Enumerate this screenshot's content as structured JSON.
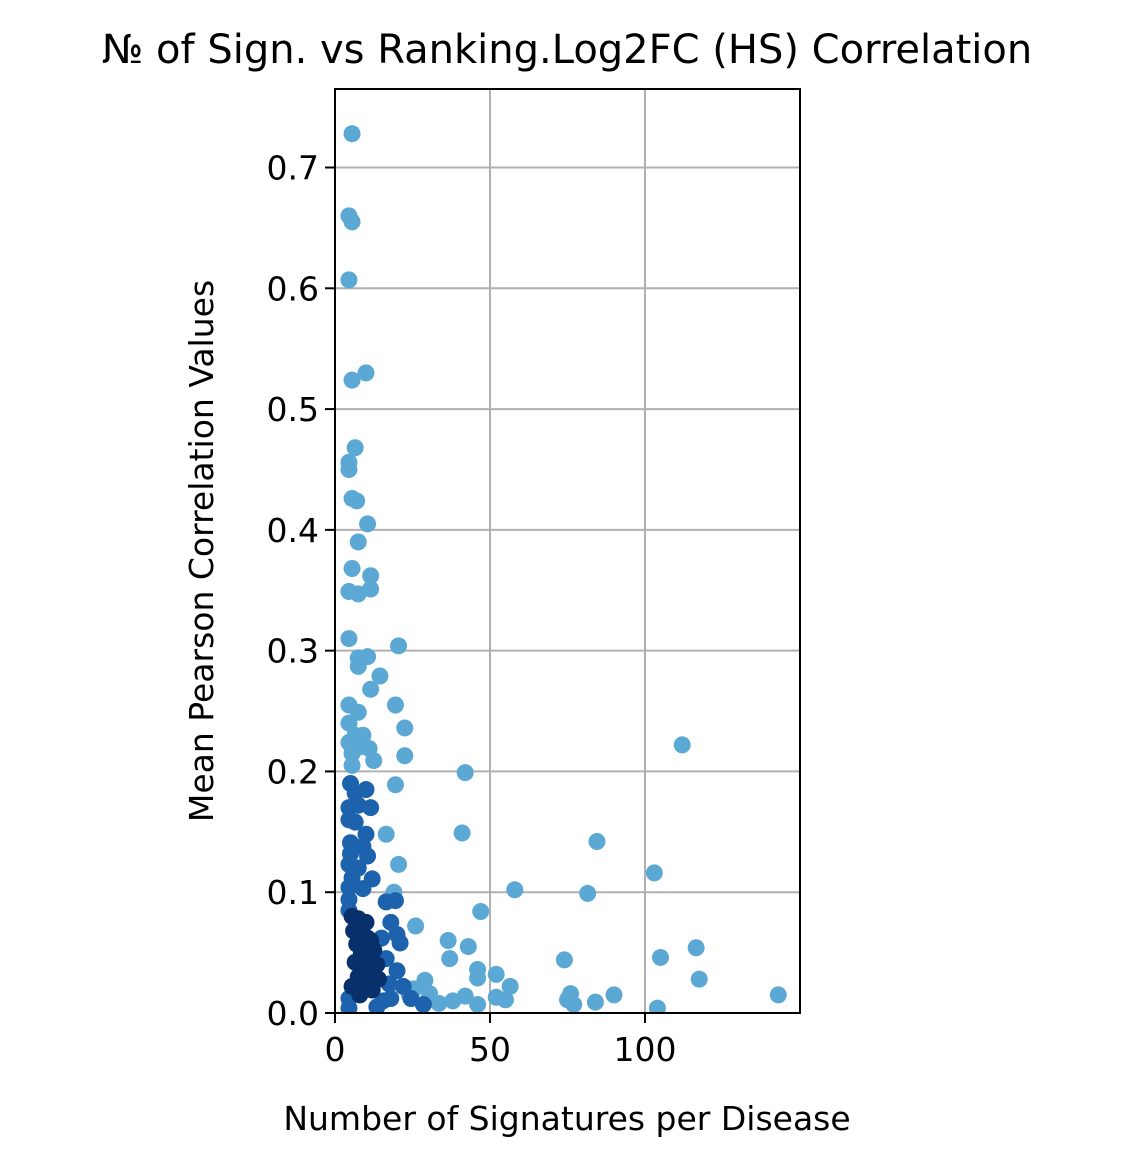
{
  "chart_data": {
    "type": "scatter",
    "title": "№ of Sign. vs Ranking.Log2FC (HS) Correlation",
    "xlabel": "Number of Signatures per Disease",
    "ylabel": "Mean Pearson Correlation Values",
    "xlim": [
      0,
      150
    ],
    "ylim": [
      0,
      0.765
    ],
    "xticks": [
      0,
      50,
      100
    ],
    "xtick_labels": [
      "0",
      "50",
      "100"
    ],
    "yticks": [
      0.0,
      0.1,
      0.2,
      0.3,
      0.4,
      0.5,
      0.6,
      0.7
    ],
    "ytick_labels": [
      "0.0",
      "0.1",
      "0.2",
      "0.3",
      "0.4",
      "0.5",
      "0.6",
      "0.7"
    ],
    "grid": true,
    "legend": false,
    "colors": {
      "light": "#5ca8d4",
      "medium": "#1c62ad",
      "dark": "#08306b",
      "grid": "#b0b0b0"
    },
    "series": [
      {
        "points": [
          [
            5.5,
            0.728
          ],
          [
            4.5,
            0.66
          ],
          [
            5.5,
            0.655
          ],
          [
            4.5,
            0.607
          ],
          [
            10.0,
            0.53
          ],
          [
            5.5,
            0.524
          ],
          [
            6.5,
            0.468
          ],
          [
            4.5,
            0.456
          ],
          [
            4.5,
            0.45
          ],
          [
            5.5,
            0.426
          ],
          [
            7.0,
            0.424
          ],
          [
            10.5,
            0.405
          ],
          [
            7.5,
            0.39
          ],
          [
            5.5,
            0.368
          ],
          [
            11.5,
            0.362
          ],
          [
            4.5,
            0.349
          ],
          [
            7.5,
            0.347
          ],
          [
            11.5,
            0.351
          ],
          [
            4.5,
            0.31
          ],
          [
            20.5,
            0.304
          ],
          [
            7.5,
            0.294
          ],
          [
            10.5,
            0.295
          ],
          [
            7.5,
            0.287
          ],
          [
            14.5,
            0.279
          ],
          [
            11.5,
            0.268
          ],
          [
            4.5,
            0.255
          ],
          [
            19.5,
            0.255
          ],
          [
            7.5,
            0.249
          ],
          [
            4.5,
            0.24
          ],
          [
            22.5,
            0.236
          ],
          [
            6.5,
            0.23
          ],
          [
            9.0,
            0.23
          ],
          [
            4.5,
            0.224
          ],
          [
            7.5,
            0.22
          ],
          [
            11.0,
            0.219
          ],
          [
            5.5,
            0.215
          ],
          [
            22.5,
            0.213
          ],
          [
            12.5,
            0.209
          ],
          [
            5.5,
            0.205
          ],
          [
            112.0,
            0.222
          ],
          [
            42.0,
            0.199
          ],
          [
            19.5,
            0.189
          ],
          [
            84.5,
            0.142
          ],
          [
            41.0,
            0.149
          ],
          [
            103.0,
            0.116
          ],
          [
            58.0,
            0.102
          ],
          [
            81.5,
            0.099
          ],
          [
            47.0,
            0.084
          ],
          [
            116.5,
            0.054
          ],
          [
            105.0,
            0.046
          ],
          [
            74.0,
            0.044
          ],
          [
            36.5,
            0.06
          ],
          [
            43.0,
            0.055
          ],
          [
            37.0,
            0.045
          ],
          [
            52.0,
            0.032
          ],
          [
            56.5,
            0.022
          ],
          [
            46.0,
            0.036
          ],
          [
            46.0,
            0.029
          ],
          [
            117.5,
            0.028
          ],
          [
            76.0,
            0.016
          ],
          [
            90.0,
            0.015
          ],
          [
            143.0,
            0.015
          ],
          [
            84.0,
            0.009
          ],
          [
            75.0,
            0.011
          ],
          [
            104.0,
            0.004
          ],
          [
            52.0,
            0.013
          ],
          [
            55.0,
            0.011
          ],
          [
            38.0,
            0.01
          ],
          [
            42.0,
            0.014
          ],
          [
            46.0,
            0.007
          ],
          [
            77.0,
            0.007
          ],
          [
            24.0,
            0.015
          ],
          [
            16.5,
            0.148
          ],
          [
            20.5,
            0.123
          ],
          [
            19.0,
            0.1
          ],
          [
            26.0,
            0.072
          ],
          [
            29.0,
            0.027
          ],
          [
            25.5,
            0.02
          ],
          [
            30.5,
            0.016
          ],
          [
            33.5,
            0.008
          ]
        ],
        "color": "#5ca8d4"
      },
      {
        "points": [
          [
            5.0,
            0.19
          ],
          [
            6.5,
            0.182
          ],
          [
            10.0,
            0.185
          ],
          [
            4.5,
            0.17
          ],
          [
            7.5,
            0.172
          ],
          [
            11.5,
            0.17
          ],
          [
            4.5,
            0.16
          ],
          [
            6.5,
            0.158
          ],
          [
            10.0,
            0.148
          ],
          [
            5.0,
            0.141
          ],
          [
            9.0,
            0.138
          ],
          [
            5.0,
            0.132
          ],
          [
            10.5,
            0.13
          ],
          [
            4.5,
            0.123
          ],
          [
            7.5,
            0.12
          ],
          [
            5.5,
            0.112
          ],
          [
            12.0,
            0.111
          ],
          [
            4.5,
            0.104
          ],
          [
            9.0,
            0.103
          ],
          [
            4.5,
            0.094
          ],
          [
            16.5,
            0.092
          ],
          [
            19.5,
            0.093
          ],
          [
            4.5,
            0.085
          ],
          [
            18.0,
            0.075
          ],
          [
            20.0,
            0.065
          ],
          [
            21.0,
            0.058
          ],
          [
            15.0,
            0.062
          ],
          [
            16.5,
            0.045
          ],
          [
            20.0,
            0.035
          ],
          [
            17.5,
            0.024
          ],
          [
            22.0,
            0.022
          ],
          [
            24.5,
            0.012
          ],
          [
            15.5,
            0.01
          ],
          [
            4.5,
            0.012
          ],
          [
            4.5,
            0.004
          ],
          [
            13.5,
            0.005
          ],
          [
            18.0,
            0.012
          ],
          [
            28.5,
            0.007
          ],
          [
            11.5,
            0.024
          ]
        ],
        "color": "#1c62ad"
      },
      {
        "points": [
          [
            5.5,
            0.08
          ],
          [
            7.5,
            0.078
          ],
          [
            10.0,
            0.075
          ],
          [
            6.0,
            0.068
          ],
          [
            9.0,
            0.065
          ],
          [
            11.5,
            0.06
          ],
          [
            7.0,
            0.057
          ],
          [
            12.5,
            0.052
          ],
          [
            8.5,
            0.049
          ],
          [
            10.5,
            0.045
          ],
          [
            6.5,
            0.042
          ],
          [
            13.0,
            0.04
          ],
          [
            9.5,
            0.037
          ],
          [
            11.0,
            0.033
          ],
          [
            7.5,
            0.03
          ],
          [
            14.0,
            0.028
          ],
          [
            10.0,
            0.025
          ],
          [
            5.5,
            0.022
          ],
          [
            12.0,
            0.019
          ],
          [
            8.0,
            0.015
          ],
          [
            13.5,
            0.04
          ],
          [
            11.5,
            0.048
          ],
          [
            9.0,
            0.055
          ],
          [
            10.5,
            0.062
          ]
        ],
        "color": "#08306b"
      }
    ]
  }
}
